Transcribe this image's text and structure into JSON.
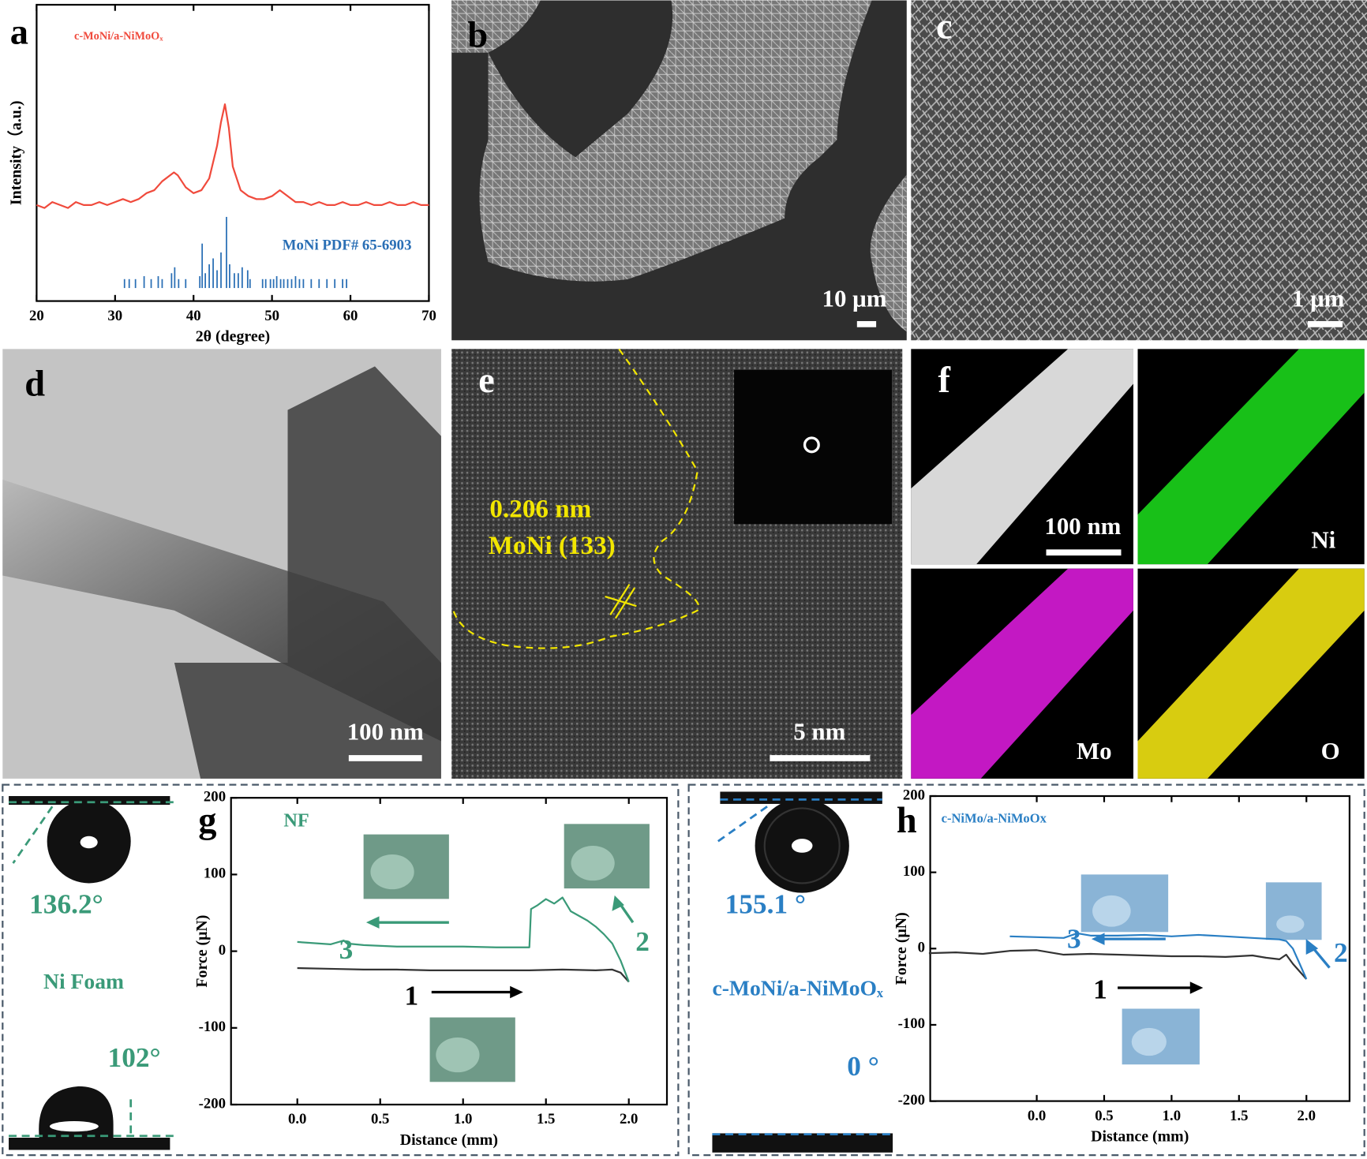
{
  "panel_labels": [
    "a",
    "b",
    "c",
    "d",
    "e",
    "f",
    "g",
    "h"
  ],
  "micrographs": {
    "b": {
      "scale_bar": "10 μm"
    },
    "c": {
      "scale_bar": "1 μm"
    },
    "d": {
      "scale_bar": "100 nm"
    },
    "e": {
      "scale_bar": "5 nm",
      "d_spacing": "0.206 nm",
      "plane": "MoNi (133)"
    },
    "f": {
      "scale_bar": "100 nm",
      "elements": [
        "Ni",
        "Mo",
        "O"
      ]
    }
  },
  "contact_angle": {
    "g": {
      "top_angle": "136.2°",
      "sample": "Ni Foam",
      "bottom_angle": "102°"
    },
    "h": {
      "top_angle": "155.1 °",
      "sample": "c-MoNi/a-NiMoOₓ",
      "bottom_angle": "0 °"
    }
  },
  "chart_data": [
    {
      "type": "line",
      "xlabel": "2θ (degree)",
      "ylabel": "Intensity（a.u.)",
      "xlim": [
        20,
        70
      ],
      "ylim": [
        -4.4,
        95.6
      ],
      "xticks": [
        20,
        30,
        40,
        50,
        60,
        70
      ],
      "series": [
        {
          "name": "c-MoNi/a-NiMoOₓ",
          "color": "#f04a3c",
          "x": [
            20,
            21,
            22,
            23,
            24,
            25,
            26,
            27,
            28,
            29,
            30,
            31,
            32,
            33,
            34,
            35,
            36,
            37,
            37.5,
            38,
            39,
            40,
            41,
            42,
            43,
            43.5,
            44,
            44.5,
            45,
            46,
            47,
            48,
            49,
            50,
            51,
            52,
            53,
            54,
            55,
            56,
            57,
            58,
            59,
            60,
            61,
            62,
            63,
            64,
            65,
            66,
            67,
            68,
            69,
            70
          ],
          "values": [
            28,
            27,
            29,
            28,
            27,
            29,
            28,
            28,
            29,
            28,
            29,
            30,
            29,
            30,
            32,
            33,
            36,
            38,
            39,
            38,
            34,
            32,
            33,
            37,
            48,
            56,
            62,
            54,
            41,
            33,
            31,
            30,
            30,
            31,
            33,
            31,
            29,
            29,
            28,
            29,
            28,
            28,
            29,
            28,
            28,
            29,
            28,
            28,
            29,
            28,
            28,
            29,
            28,
            28
          ]
        },
        {
          "name": "MoNi  PDF# 65-6903",
          "color": "#2a6fb5",
          "style": "stick",
          "x": [
            31.2,
            31.8,
            32.6,
            33.7,
            34.6,
            35.5,
            36.0,
            37.2,
            37.6,
            38.1,
            39.0,
            40.8,
            41.1,
            41.5,
            42.0,
            42.5,
            43.0,
            43.5,
            44.2,
            44.6,
            45.2,
            45.7,
            46.2,
            46.9,
            47.2,
            48.8,
            49.2,
            49.8,
            50.2,
            50.6,
            51.1,
            51.5,
            52.0,
            52.5,
            53.0,
            53.5,
            54.0,
            55.0,
            56.0,
            57.0,
            58.0,
            59.0,
            59.5
          ],
          "values": [
            3,
            3,
            3,
            4,
            3,
            4,
            3,
            5,
            7,
            3,
            3,
            4,
            15,
            5,
            8,
            10,
            6,
            12,
            24,
            8,
            5,
            5,
            7,
            6,
            3,
            3,
            3,
            3,
            3,
            4,
            3,
            3,
            3,
            3,
            4,
            3,
            3,
            3,
            3,
            3,
            3,
            3,
            3
          ]
        }
      ]
    },
    {
      "type": "line",
      "title": "NF",
      "xlabel": "Distance (mm)",
      "ylabel": "Force (μN)",
      "xlim": [
        -0.4,
        2.23
      ],
      "ylim": [
        -200,
        200
      ],
      "xticks": [
        {
          "value": 0,
          "label": "0.0"
        },
        {
          "value": 0.5,
          "label": "0.5"
        },
        {
          "value": 1,
          "label": "1.0"
        },
        {
          "value": 1.5,
          "label": "1.5"
        },
        {
          "value": 2,
          "label": "2.0"
        }
      ],
      "yticks": [
        -200,
        -100,
        0,
        100,
        200
      ],
      "annotations": [
        "3",
        "2",
        "1"
      ],
      "series": [
        {
          "color": "#333333",
          "x": [
            0,
            0.2,
            0.4,
            0.6,
            0.8,
            1.0,
            1.2,
            1.4,
            1.6,
            1.8,
            1.9,
            1.95,
            2.0
          ],
          "values": [
            -22,
            -23,
            -24,
            -24,
            -25,
            -25,
            -25,
            -25,
            -24,
            -25,
            -24,
            -28,
            -40
          ]
        },
        {
          "color": "#3a9a78",
          "x": [
            2.0,
            1.95,
            1.9,
            1.85,
            1.8,
            1.75,
            1.7,
            1.65,
            1.6,
            1.55,
            1.5,
            1.45,
            1.41,
            1.4,
            1.2,
            1.0,
            0.8,
            0.6,
            0.4,
            0.3,
            0.28,
            0.2,
            0.0
          ],
          "values": [
            -40,
            -12,
            10,
            22,
            32,
            40,
            46,
            52,
            70,
            62,
            68,
            60,
            55,
            5,
            5,
            6,
            6,
            6,
            8,
            10,
            14,
            9,
            12
          ]
        }
      ]
    },
    {
      "type": "line",
      "title": "c-NiMo/a-NiMoOx",
      "xlabel": "Distance (mm)",
      "ylabel": "Force (μN)",
      "xlim": [
        -0.79,
        2.32
      ],
      "ylim": [
        -200,
        200
      ],
      "xticks": [
        {
          "value": 0,
          "label": "0.0"
        },
        {
          "value": 0.5,
          "label": "0.5"
        },
        {
          "value": 1,
          "label": "1.0"
        },
        {
          "value": 1.5,
          "label": "1.5"
        },
        {
          "value": 2,
          "label": "2.0"
        }
      ],
      "yticks": [
        -200,
        -100,
        0,
        100,
        200
      ],
      "annotations": [
        "3",
        "2",
        "1"
      ],
      "series": [
        {
          "color": "#333333",
          "x": [
            -0.8,
            -0.6,
            -0.4,
            -0.2,
            0,
            0.2,
            0.4,
            0.6,
            0.8,
            1.0,
            1.2,
            1.4,
            1.6,
            1.7,
            1.8,
            1.85,
            1.9,
            2.0
          ],
          "values": [
            -6,
            -5,
            -7,
            -3,
            -2,
            -8,
            -7,
            -8,
            -9,
            -10,
            -10,
            -11,
            -9,
            -12,
            -14,
            -8,
            -20,
            -40
          ]
        },
        {
          "color": "#2a7fc4",
          "x": [
            2.0,
            1.95,
            1.9,
            1.85,
            1.8,
            1.6,
            1.4,
            1.2,
            1.0,
            0.8,
            0.6,
            0.4,
            0.3,
            0.2,
            0.0,
            -0.2
          ],
          "values": [
            -40,
            -20,
            0,
            10,
            12,
            14,
            16,
            18,
            16,
            18,
            17,
            17,
            20,
            14,
            15,
            16
          ]
        }
      ]
    }
  ]
}
